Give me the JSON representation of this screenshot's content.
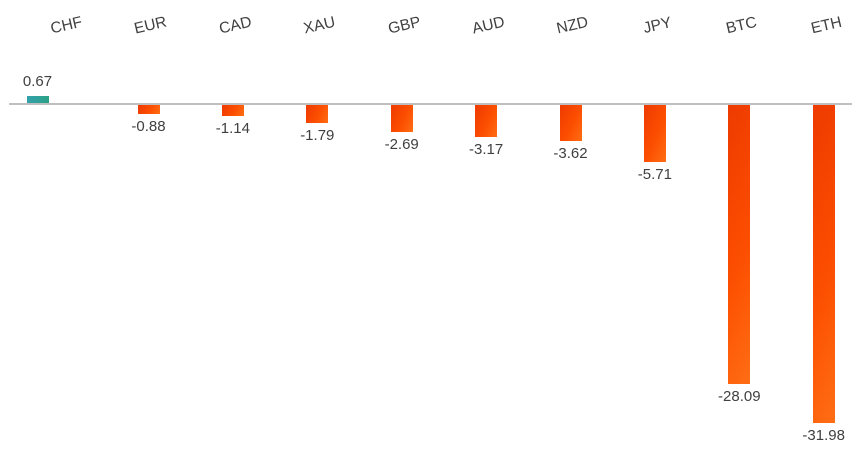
{
  "chart_data": {
    "type": "bar",
    "title": "",
    "xlabel": "",
    "ylabel": "",
    "categories": [
      "CHF",
      "EUR",
      "CAD",
      "XAU",
      "GBP",
      "AUD",
      "NZD",
      "JPY",
      "BTC",
      "ETH"
    ],
    "values": [
      0.67,
      -0.88,
      -1.14,
      -1.79,
      -2.69,
      -3.17,
      -3.62,
      -5.71,
      -28.09,
      -31.98
    ],
    "value_labels": [
      "0.67",
      "-0.88",
      "-1.14",
      "-1.79",
      "-2.69",
      "-3.17",
      "-3.62",
      "-5.71",
      "-28.09",
      "-31.98"
    ],
    "baseline": 0,
    "ylim": [
      -32,
      1
    ],
    "grid": false,
    "legend_position": "none",
    "category_labels_position": "top",
    "data_labels": "outside-end",
    "colors": {
      "positive_bar_gradient_start": "#35a1ac",
      "positive_bar_gradient_end": "#2ba186",
      "negative_bar_gradient_start": "#ee3a00",
      "negative_bar_gradient_end": "#ff6e14",
      "axis_line": "#bfbfbf",
      "text": "#404040"
    }
  }
}
